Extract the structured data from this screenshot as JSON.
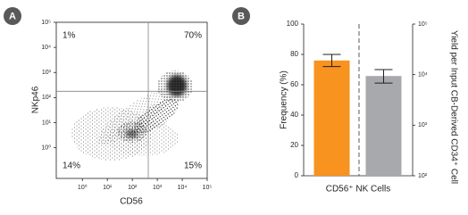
{
  "chart_data": [
    {
      "type": "scatter",
      "panel": "A",
      "xlabel": "CD56",
      "ylabel": "NKp46",
      "log_scale": true,
      "xlim": [
        0.09,
        100000
      ],
      "ylim": [
        0.06,
        100000
      ],
      "xticks": [
        {
          "value": 1,
          "label": "10⁰"
        },
        {
          "value": 10,
          "label": "10¹"
        },
        {
          "value": 100,
          "label": "10²"
        },
        {
          "value": 1000,
          "label": "10³"
        },
        {
          "value": 10000,
          "label": "10⁴"
        },
        {
          "value": 100000,
          "label": "10⁵"
        }
      ],
      "yticks": [
        {
          "value": 1,
          "label": "10⁰"
        },
        {
          "value": 10,
          "label": "10¹"
        },
        {
          "value": 100,
          "label": "10²"
        },
        {
          "value": 1000,
          "label": "10³"
        },
        {
          "value": 10000,
          "label": "10⁴"
        },
        {
          "value": 100000,
          "label": "10⁵"
        }
      ],
      "gates": {
        "x": 436,
        "y": 178
      },
      "quadrants": {
        "top_left": "1%",
        "top_right": "70%",
        "bottom_left": "14%",
        "bottom_right": "15%"
      }
    },
    {
      "type": "bar",
      "panel": "B",
      "ylabel": "Frequency (%)",
      "y2label": "Yield per Input CB-Derived CD34⁺ Cell",
      "categories": [
        "CD56⁺ NK Cells"
      ],
      "ylim": [
        0,
        100
      ],
      "yticks": [
        0,
        20,
        40,
        60,
        80,
        100
      ],
      "y2lim": [
        100,
        100000
      ],
      "y2_log_scale": true,
      "y2ticks": [
        {
          "value": 100,
          "label": "10²"
        },
        {
          "value": 1000,
          "label": "10³"
        },
        {
          "value": 10000,
          "label": "10⁴"
        },
        {
          "value": 100000,
          "label": "10⁵"
        }
      ],
      "series": [
        {
          "color": "#f7931e",
          "values": [
            76
          ],
          "err_low": [
            72
          ],
          "err_high": [
            80
          ]
        },
        {
          "color": "#a7a9ac",
          "values": [
            9400
          ],
          "err_low": [
            6800
          ],
          "err_high": [
            12600
          ],
          "axis": "y2"
        }
      ]
    }
  ]
}
